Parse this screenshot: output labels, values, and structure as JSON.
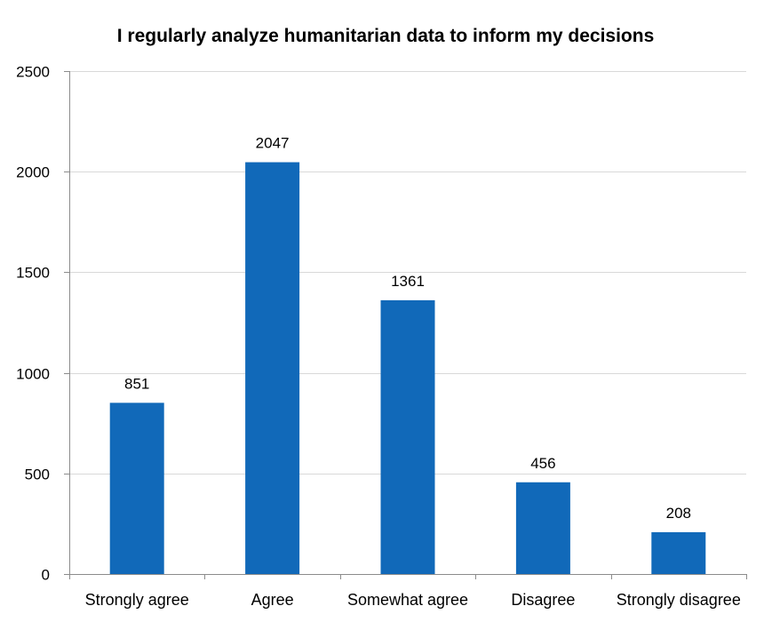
{
  "chart_data": {
    "type": "bar",
    "title": "I regularly analyze humanitarian data to inform my decisions",
    "categories": [
      "Strongly agree",
      "Agree",
      "Somewhat agree",
      "Disagree",
      "Strongly disagree"
    ],
    "values": [
      851,
      2047,
      1361,
      456,
      208
    ],
    "data_labels": [
      "851",
      "2047",
      "1361",
      "456",
      "208"
    ],
    "ylim": [
      0,
      2500
    ],
    "yticks": [
      0,
      500,
      1000,
      1500,
      2000,
      2500
    ],
    "ytick_labels": [
      "0",
      "500",
      "1000",
      "1500",
      "2000",
      "2500"
    ],
    "xlabel": "",
    "ylabel": "",
    "grid": true,
    "legend": "none",
    "colors": {
      "bar": "#1169b9",
      "gridline": "#d9d9d9",
      "axis": "#8c8c8c",
      "text": "#000000"
    }
  }
}
